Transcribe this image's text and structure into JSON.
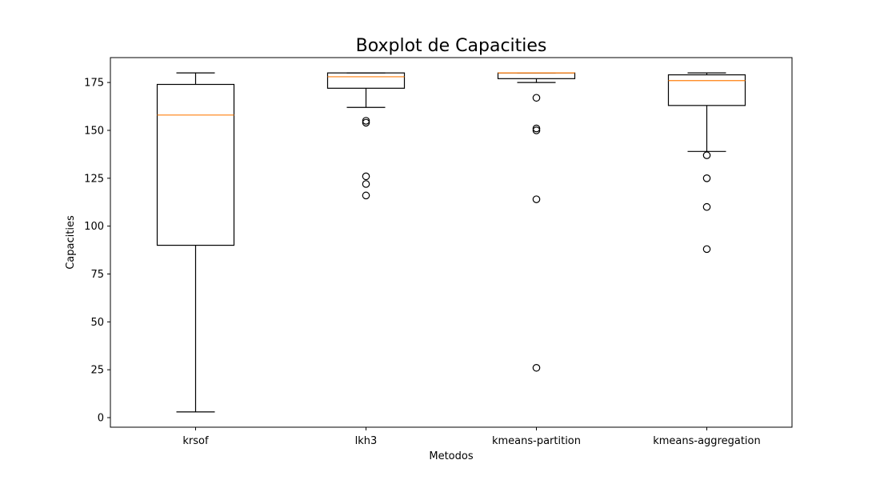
{
  "chart_data": {
    "type": "box",
    "title": "Boxplot de Capacities",
    "xlabel": "Metodos",
    "ylabel": "Capacities",
    "ylim": [
      -5,
      188
    ],
    "yticks": [
      0,
      25,
      50,
      75,
      100,
      125,
      150,
      175
    ],
    "grid": false,
    "colors": {
      "box": "#000000",
      "median": "#ff7f0e",
      "outlier": "#000000"
    },
    "series": [
      {
        "category": "krsof",
        "whisker_low": 3,
        "q1": 90,
        "median": 158,
        "q3": 174,
        "whisker_high": 180,
        "outliers": []
      },
      {
        "category": "lkh3",
        "whisker_low": 162,
        "q1": 172,
        "median": 178,
        "q3": 180,
        "whisker_high": 180,
        "outliers": [
          155,
          154,
          126,
          122,
          116
        ]
      },
      {
        "category": "kmeans-partition",
        "whisker_low": 175,
        "q1": 177,
        "median": 180,
        "q3": 180,
        "whisker_high": 180,
        "outliers": [
          167,
          151,
          150,
          114,
          26
        ]
      },
      {
        "category": "kmeans-aggregation",
        "whisker_low": 139,
        "q1": 163,
        "median": 176,
        "q3": 179,
        "whisker_high": 180,
        "outliers": [
          137,
          125,
          110,
          88
        ]
      }
    ]
  }
}
